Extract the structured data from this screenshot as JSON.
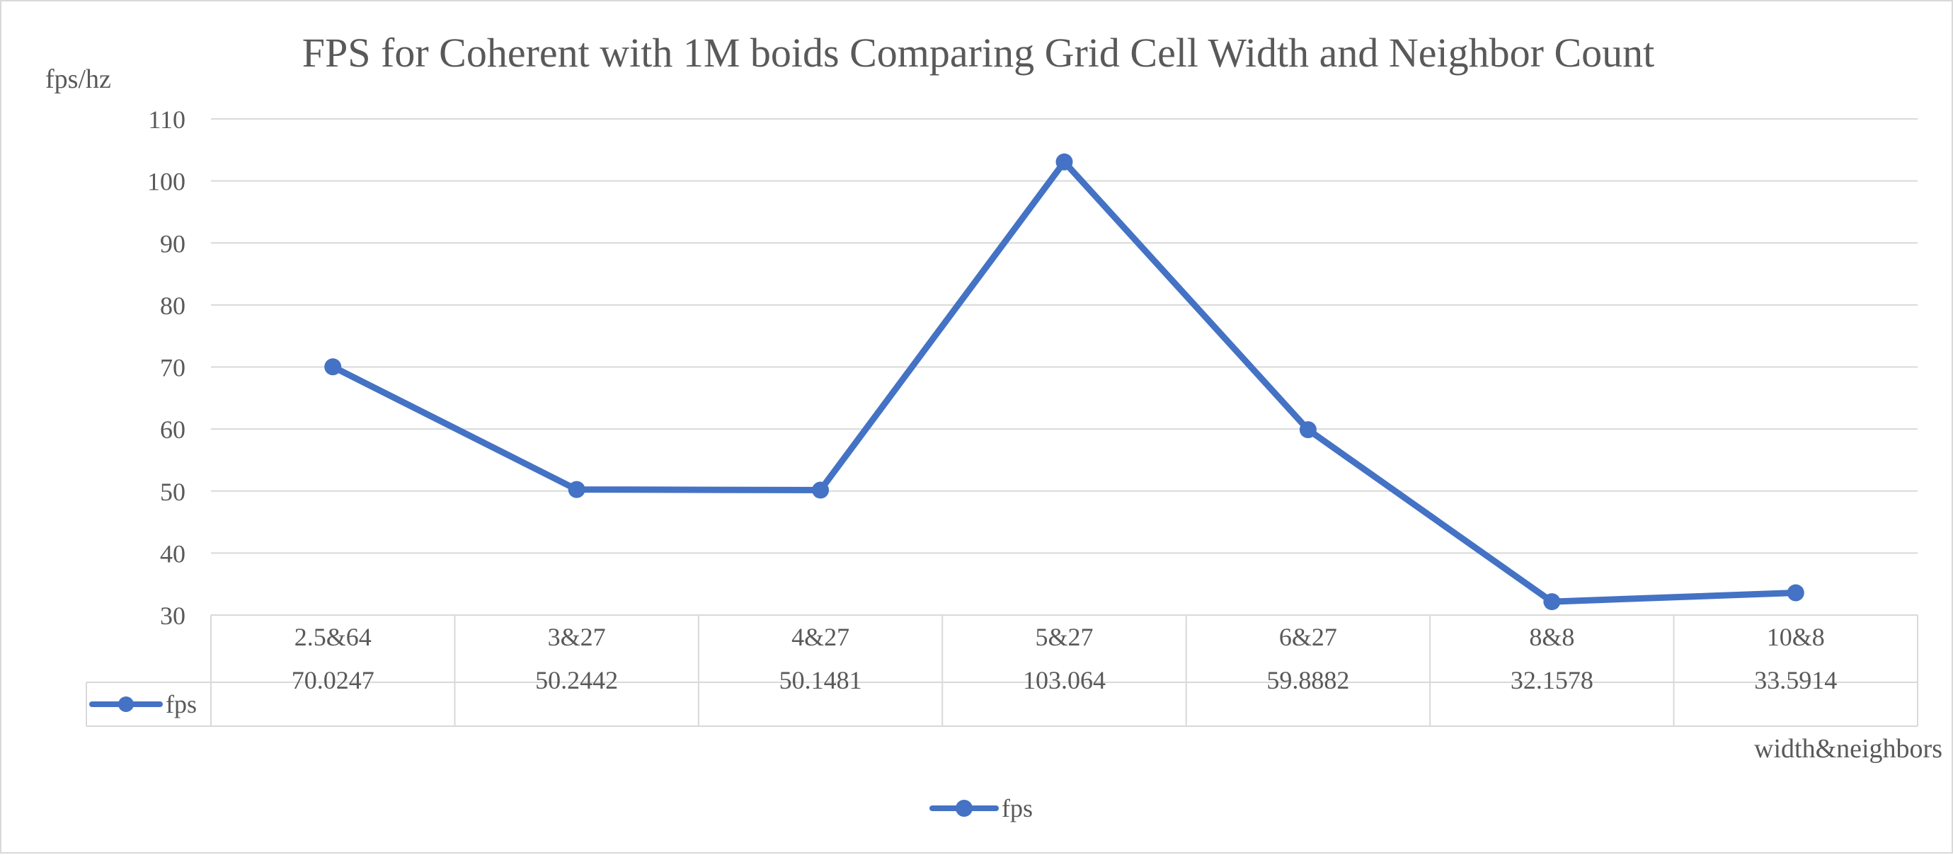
{
  "chart_data": {
    "type": "line",
    "title": "FPS for Coherent with 1M boids Comparing Grid Cell Width and Neighbor Count",
    "ylabel": "fps/hz",
    "xlabel": "width&neighbors",
    "ylim": [
      30,
      110
    ],
    "yticks": [
      30,
      40,
      50,
      60,
      70,
      80,
      90,
      100,
      110
    ],
    "grid": true,
    "categories": [
      "2.5&64",
      "3&27",
      "4&27",
      "5&27",
      "6&27",
      "8&8",
      "10&8"
    ],
    "series": [
      {
        "name": "fps",
        "values": [
          70.0247,
          50.2442,
          50.1481,
          103.064,
          59.8882,
          32.1578,
          33.5914
        ],
        "labels": [
          "70.0247",
          "50.2442",
          "50.1481",
          "103.064",
          "59.8882",
          "32.1578",
          "33.5914"
        ],
        "color": "#4472c4"
      }
    ],
    "data_table": true,
    "legend_position": "bottom"
  }
}
